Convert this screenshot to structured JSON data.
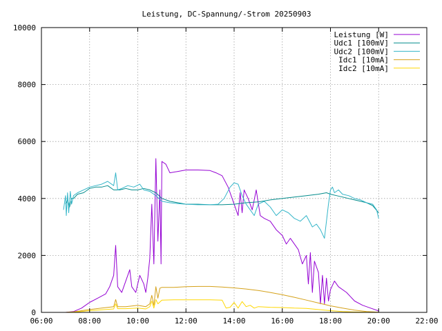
{
  "chart_data": {
    "type": "line",
    "title": "Leistung, DC-Spannung/-Strom 20250903",
    "xlabel": "",
    "ylabel": "",
    "xlim": [
      "06:00",
      "22:00"
    ],
    "ylim": [
      0,
      10000
    ],
    "x_ticks": [
      "06:00",
      "08:00",
      "10:00",
      "12:00",
      "14:00",
      "16:00",
      "18:00",
      "20:00",
      "22:00"
    ],
    "y_ticks": [
      "0",
      "2000",
      "4000",
      "6000",
      "8000",
      "10000"
    ],
    "grid": true,
    "legend_position": "top-right",
    "series": [
      {
        "name": "Leistung [W]",
        "color": "#9400d3",
        "points": [
          [
            "07:00",
            0
          ],
          [
            "07:20",
            30
          ],
          [
            "07:40",
            150
          ],
          [
            "08:00",
            350
          ],
          [
            "08:20",
            500
          ],
          [
            "08:40",
            650
          ],
          [
            "08:50",
            900
          ],
          [
            "09:00",
            1300
          ],
          [
            "09:05",
            2350
          ],
          [
            "09:10",
            900
          ],
          [
            "09:20",
            700
          ],
          [
            "09:30",
            1100
          ],
          [
            "09:40",
            1500
          ],
          [
            "09:45",
            900
          ],
          [
            "09:55",
            700
          ],
          [
            "10:05",
            1300
          ],
          [
            "10:15",
            1000
          ],
          [
            "10:20",
            700
          ],
          [
            "10:25",
            1200
          ],
          [
            "10:30",
            1900
          ],
          [
            "10:35",
            3800
          ],
          [
            "10:40",
            1700
          ],
          [
            "10:45",
            5400
          ],
          [
            "10:50",
            2500
          ],
          [
            "10:55",
            4300
          ],
          [
            "10:58",
            1700
          ],
          [
            "11:00",
            5300
          ],
          [
            "11:10",
            5200
          ],
          [
            "11:20",
            4900
          ],
          [
            "11:40",
            4950
          ],
          [
            "12:00",
            5000
          ],
          [
            "12:30",
            5000
          ],
          [
            "13:00",
            4980
          ],
          [
            "13:15",
            4900
          ],
          [
            "13:30",
            4800
          ],
          [
            "13:45",
            4400
          ],
          [
            "14:00",
            3800
          ],
          [
            "14:10",
            3400
          ],
          [
            "14:15",
            4200
          ],
          [
            "14:20",
            3500
          ],
          [
            "14:25",
            4300
          ],
          [
            "14:35",
            4000
          ],
          [
            "14:45",
            3600
          ],
          [
            "14:55",
            4300
          ],
          [
            "15:05",
            3400
          ],
          [
            "15:15",
            3300
          ],
          [
            "15:30",
            3200
          ],
          [
            "15:45",
            2900
          ],
          [
            "16:00",
            2700
          ],
          [
            "16:10",
            2400
          ],
          [
            "16:20",
            2600
          ],
          [
            "16:40",
            2200
          ],
          [
            "16:50",
            1700
          ],
          [
            "17:00",
            2000
          ],
          [
            "17:05",
            1000
          ],
          [
            "17:10",
            2100
          ],
          [
            "17:15",
            700
          ],
          [
            "17:20",
            1800
          ],
          [
            "17:30",
            1400
          ],
          [
            "17:35",
            300
          ],
          [
            "17:40",
            1300
          ],
          [
            "17:45",
            300
          ],
          [
            "17:50",
            1200
          ],
          [
            "17:55",
            400
          ],
          [
            "18:00",
            800
          ],
          [
            "18:10",
            1100
          ],
          [
            "18:20",
            900
          ],
          [
            "18:40",
            700
          ],
          [
            "19:00",
            400
          ],
          [
            "19:20",
            250
          ],
          [
            "19:40",
            150
          ],
          [
            "20:00",
            50
          ]
        ]
      },
      {
        "name": "Udc1 [100mV]",
        "color": "#008b8b",
        "points": [
          [
            "07:00",
            3800
          ],
          [
            "07:05",
            3950
          ],
          [
            "07:10",
            3700
          ],
          [
            "07:15",
            4000
          ],
          [
            "07:20",
            4000
          ],
          [
            "07:30",
            4150
          ],
          [
            "07:45",
            4200
          ],
          [
            "08:00",
            4350
          ],
          [
            "08:15",
            4400
          ],
          [
            "08:30",
            4400
          ],
          [
            "08:45",
            4450
          ],
          [
            "09:00",
            4300
          ],
          [
            "09:15",
            4300
          ],
          [
            "09:30",
            4350
          ],
          [
            "09:45",
            4300
          ],
          [
            "10:00",
            4300
          ],
          [
            "10:15",
            4350
          ],
          [
            "10:30",
            4300
          ],
          [
            "10:45",
            4200
          ],
          [
            "11:00",
            4000
          ],
          [
            "11:20",
            3900
          ],
          [
            "11:40",
            3850
          ],
          [
            "12:00",
            3800
          ],
          [
            "12:30",
            3800
          ],
          [
            "13:00",
            3780
          ],
          [
            "13:30",
            3780
          ],
          [
            "14:00",
            3800
          ],
          [
            "14:30",
            3850
          ],
          [
            "15:00",
            3880
          ],
          [
            "15:30",
            3950
          ],
          [
            "16:00",
            4000
          ],
          [
            "16:30",
            4050
          ],
          [
            "17:00",
            4100
          ],
          [
            "17:30",
            4150
          ],
          [
            "17:50",
            4200
          ],
          [
            "18:00",
            4150
          ],
          [
            "18:15",
            4100
          ],
          [
            "18:30",
            4050
          ],
          [
            "18:45",
            4000
          ],
          [
            "19:00",
            3950
          ],
          [
            "19:15",
            3900
          ],
          [
            "19:30",
            3850
          ],
          [
            "19:45",
            3750
          ],
          [
            "20:00",
            3500
          ]
        ]
      },
      {
        "name": "Udc2 [100mV]",
        "color": "#33b5c8",
        "points": [
          [
            "06:55",
            3600
          ],
          [
            "07:00",
            4100
          ],
          [
            "07:02",
            3400
          ],
          [
            "07:05",
            4200
          ],
          [
            "07:08",
            3500
          ],
          [
            "07:12",
            4250
          ],
          [
            "07:15",
            3800
          ],
          [
            "07:20",
            4100
          ],
          [
            "07:30",
            4200
          ],
          [
            "07:45",
            4300
          ],
          [
            "08:00",
            4400
          ],
          [
            "08:15",
            4450
          ],
          [
            "08:30",
            4500
          ],
          [
            "08:45",
            4600
          ],
          [
            "09:00",
            4450
          ],
          [
            "09:05",
            4900
          ],
          [
            "09:10",
            4300
          ],
          [
            "09:20",
            4350
          ],
          [
            "09:35",
            4450
          ],
          [
            "09:50",
            4400
          ],
          [
            "10:05",
            4500
          ],
          [
            "10:15",
            4300
          ],
          [
            "10:30",
            4250
          ],
          [
            "10:45",
            4100
          ],
          [
            "11:00",
            3900
          ],
          [
            "11:20",
            3850
          ],
          [
            "11:40",
            3820
          ],
          [
            "12:00",
            3800
          ],
          [
            "12:30",
            3780
          ],
          [
            "13:00",
            3780
          ],
          [
            "13:20",
            3800
          ],
          [
            "13:35",
            4000
          ],
          [
            "13:50",
            4400
          ],
          [
            "14:00",
            4550
          ],
          [
            "14:10",
            4500
          ],
          [
            "14:20",
            4100
          ],
          [
            "14:30",
            3800
          ],
          [
            "14:40",
            3600
          ],
          [
            "14:50",
            3400
          ],
          [
            "15:00",
            3800
          ],
          [
            "15:15",
            3900
          ],
          [
            "15:30",
            3700
          ],
          [
            "15:45",
            3400
          ],
          [
            "16:00",
            3600
          ],
          [
            "16:15",
            3500
          ],
          [
            "16:30",
            3300
          ],
          [
            "16:45",
            3200
          ],
          [
            "17:00",
            3400
          ],
          [
            "17:15",
            3000
          ],
          [
            "17:25",
            3100
          ],
          [
            "17:35",
            2900
          ],
          [
            "17:45",
            2600
          ],
          [
            "17:55",
            3800
          ],
          [
            "18:00",
            4300
          ],
          [
            "18:05",
            4400
          ],
          [
            "18:10",
            4200
          ],
          [
            "18:20",
            4300
          ],
          [
            "18:30",
            4150
          ],
          [
            "18:45",
            4100
          ],
          [
            "19:00",
            4000
          ],
          [
            "19:15",
            3950
          ],
          [
            "19:30",
            3850
          ],
          [
            "19:45",
            3800
          ],
          [
            "19:55",
            3600
          ],
          [
            "20:00",
            3300
          ]
        ]
      },
      {
        "name": "Idc1 [10mA]",
        "color": "#d4a017",
        "points": [
          [
            "07:00",
            0
          ],
          [
            "07:20",
            20
          ],
          [
            "07:40",
            60
          ],
          [
            "08:00",
            100
          ],
          [
            "08:30",
            150
          ],
          [
            "09:00",
            200
          ],
          [
            "09:05",
            450
          ],
          [
            "09:10",
            200
          ],
          [
            "09:30",
            200
          ],
          [
            "10:00",
            250
          ],
          [
            "10:20",
            200
          ],
          [
            "10:30",
            300
          ],
          [
            "10:35",
            600
          ],
          [
            "10:40",
            250
          ],
          [
            "10:45",
            900
          ],
          [
            "10:50",
            500
          ],
          [
            "10:55",
            850
          ],
          [
            "11:00",
            880
          ],
          [
            "11:30",
            880
          ],
          [
            "12:00",
            900
          ],
          [
            "12:30",
            910
          ],
          [
            "13:00",
            910
          ],
          [
            "13:30",
            890
          ],
          [
            "14:00",
            860
          ],
          [
            "14:30",
            820
          ],
          [
            "15:00",
            770
          ],
          [
            "15:30",
            700
          ],
          [
            "16:00",
            620
          ],
          [
            "16:30",
            530
          ],
          [
            "17:00",
            430
          ],
          [
            "17:30",
            330
          ],
          [
            "18:00",
            230
          ],
          [
            "18:30",
            150
          ],
          [
            "19:00",
            80
          ],
          [
            "19:30",
            30
          ],
          [
            "20:00",
            5
          ]
        ]
      },
      {
        "name": "Idc2 [10mA]",
        "color": "#ffd700",
        "points": [
          [
            "07:00",
            0
          ],
          [
            "07:30",
            20
          ],
          [
            "08:00",
            60
          ],
          [
            "08:30",
            90
          ],
          [
            "09:00",
            120
          ],
          [
            "09:05",
            300
          ],
          [
            "09:10",
            130
          ],
          [
            "09:30",
            130
          ],
          [
            "10:00",
            150
          ],
          [
            "10:20",
            120
          ],
          [
            "10:30",
            200
          ],
          [
            "10:35",
            400
          ],
          [
            "10:40",
            150
          ],
          [
            "10:45",
            450
          ],
          [
            "10:50",
            300
          ],
          [
            "11:00",
            430
          ],
          [
            "11:30",
            440
          ],
          [
            "12:00",
            440
          ],
          [
            "12:30",
            440
          ],
          [
            "13:00",
            440
          ],
          [
            "13:30",
            430
          ],
          [
            "13:40",
            150
          ],
          [
            "13:50",
            180
          ],
          [
            "14:00",
            350
          ],
          [
            "14:10",
            150
          ],
          [
            "14:20",
            380
          ],
          [
            "14:30",
            200
          ],
          [
            "14:40",
            250
          ],
          [
            "14:50",
            150
          ],
          [
            "15:00",
            200
          ],
          [
            "15:30",
            180
          ],
          [
            "16:00",
            170
          ],
          [
            "16:30",
            150
          ],
          [
            "17:00",
            140
          ],
          [
            "17:30",
            100
          ],
          [
            "18:00",
            60
          ],
          [
            "18:30",
            30
          ],
          [
            "19:00",
            15
          ],
          [
            "20:00",
            0
          ]
        ]
      }
    ]
  }
}
